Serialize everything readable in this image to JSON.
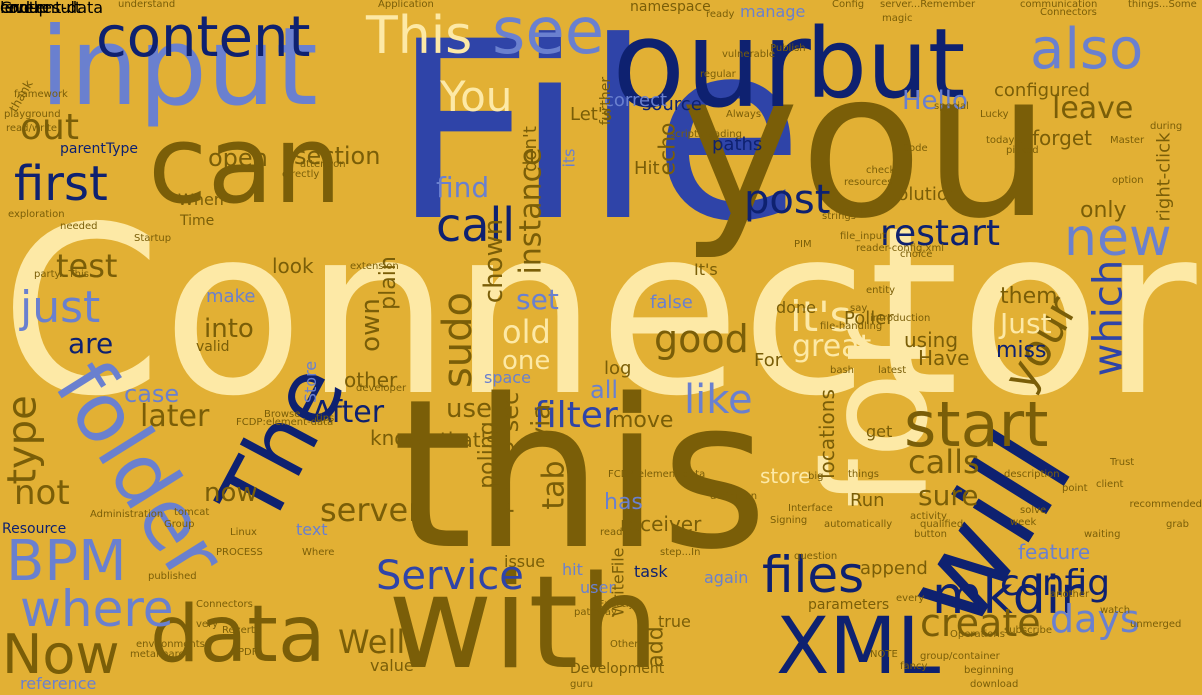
{
  "colors": {
    "background": "#e2b034",
    "cream": "#fde9a6",
    "navy": "#0e2170",
    "blue": "#2f44a8",
    "periwinkle": "#6a80cf",
    "olive": "#7a5e08",
    "brown": "#5c4304",
    "tan": "#c79a2a",
    "pale": "#d9b765"
  },
  "words": [
    {
      "text": "Connector",
      "color": "cream"
    },
    {
      "text": "File",
      "color": "blue"
    },
    {
      "text": "you",
      "color": "olive"
    },
    {
      "text": "this",
      "color": "olive"
    },
    {
      "text": "with",
      "color": "olive"
    },
    {
      "text": "our",
      "color": "navy"
    },
    {
      "text": "input",
      "color": "periwinkle"
    },
    {
      "text": "can",
      "color": "olive"
    },
    {
      "text": "but",
      "color": "navy"
    },
    {
      "text": "for",
      "color": "cream"
    },
    {
      "text": "will",
      "color": "navy"
    },
    {
      "text": "The",
      "color": "navy"
    },
    {
      "text": "folder",
      "color": "periwinkle"
    },
    {
      "text": "content",
      "color": "navy"
    },
    {
      "text": "see",
      "color": "periwinkle"
    },
    {
      "text": "also",
      "color": "periwinkle"
    },
    {
      "text": "This",
      "color": "cream"
    },
    {
      "text": "data",
      "color": "olive"
    },
    {
      "text": "XML",
      "color": "navy"
    },
    {
      "text": "start",
      "color": "olive"
    },
    {
      "text": "new",
      "color": "periwinkle"
    },
    {
      "text": "first",
      "color": "navy"
    },
    {
      "text": "BPM",
      "color": "periwinkle"
    },
    {
      "text": "where",
      "color": "periwinkle"
    },
    {
      "text": "Now",
      "color": "olive"
    },
    {
      "text": "mkdir",
      "color": "navy"
    },
    {
      "text": "files",
      "color": "navy"
    },
    {
      "text": "just",
      "color": "periwinkle"
    },
    {
      "text": "Service",
      "color": "blue"
    },
    {
      "text": "it's",
      "color": "cream"
    },
    {
      "text": "call",
      "color": "navy"
    },
    {
      "text": "You",
      "color": "cream"
    },
    {
      "text": "your",
      "color": "olive"
    },
    {
      "text": "which",
      "color": "blue"
    },
    {
      "text": "config",
      "color": "navy"
    },
    {
      "text": "create",
      "color": "olive"
    },
    {
      "text": "like",
      "color": "periwinkle"
    },
    {
      "text": "filter",
      "color": "blue"
    },
    {
      "text": "post",
      "color": "navy"
    },
    {
      "text": "good",
      "color": "olive"
    },
    {
      "text": "restart",
      "color": "navy"
    },
    {
      "text": "days",
      "color": "periwinkle"
    },
    {
      "text": "calls",
      "color": "olive"
    },
    {
      "text": "server",
      "color": "olive"
    },
    {
      "text": "After",
      "color": "navy"
    },
    {
      "text": "section",
      "color": "olive"
    },
    {
      "text": "find",
      "color": "periwinkle"
    },
    {
      "text": "out",
      "color": "olive"
    },
    {
      "text": "test",
      "color": "olive"
    },
    {
      "text": "are",
      "color": "navy"
    },
    {
      "text": "later",
      "color": "olive"
    },
    {
      "text": "type",
      "color": "olive"
    },
    {
      "text": "not",
      "color": "olive"
    },
    {
      "text": "Well",
      "color": "olive"
    },
    {
      "text": "old",
      "color": "cream"
    },
    {
      "text": "great",
      "color": "cream"
    },
    {
      "text": "sudo",
      "color": "olive"
    },
    {
      "text": "tab",
      "color": "olive"
    },
    {
      "text": "Hello",
      "color": "periwinkle"
    },
    {
      "text": "leave",
      "color": "olive"
    },
    {
      "text": "open",
      "color": "olive"
    },
    {
      "text": "set",
      "color": "periwinkle"
    },
    {
      "text": "Just",
      "color": "cream"
    },
    {
      "text": "own",
      "color": "olive"
    },
    {
      "text": "into",
      "color": "olive"
    },
    {
      "text": "all",
      "color": "periwinkle"
    },
    {
      "text": "use",
      "color": "olive"
    },
    {
      "text": "sure",
      "color": "olive"
    },
    {
      "text": "now",
      "color": "olive"
    },
    {
      "text": "instance",
      "color": "olive"
    },
    {
      "text": "one",
      "color": "cream"
    },
    {
      "text": "make",
      "color": "periwinkle"
    },
    {
      "text": "feature",
      "color": "periwinkle"
    },
    {
      "text": "reference",
      "color": "periwinkle"
    },
    {
      "text": "configured",
      "color": "olive"
    },
    {
      "text": "only",
      "color": "olive"
    },
    {
      "text": "case",
      "color": "periwinkle"
    },
    {
      "text": "them",
      "color": "olive"
    },
    {
      "text": "miss",
      "color": "navy"
    },
    {
      "text": "Have",
      "color": "olive"
    },
    {
      "text": "using",
      "color": "olive"
    },
    {
      "text": "forget",
      "color": "olive"
    },
    {
      "text": "chown",
      "color": "olive"
    },
    {
      "text": "plain",
      "color": "olive"
    },
    {
      "text": "look",
      "color": "olive"
    },
    {
      "text": "echo",
      "color": "olive"
    },
    {
      "text": "paths",
      "color": "navy"
    },
    {
      "text": "source",
      "color": "navy"
    },
    {
      "text": "solution",
      "color": "olive"
    },
    {
      "text": "Poller",
      "color": "olive"
    },
    {
      "text": "store",
      "color": "cream"
    },
    {
      "text": "Run",
      "color": "olive"
    },
    {
      "text": "append",
      "color": "olive"
    },
    {
      "text": "get",
      "color": "olive"
    },
    {
      "text": "has",
      "color": "periwinkle"
    },
    {
      "text": "receiver",
      "color": "olive"
    },
    {
      "text": "move",
      "color": "olive"
    },
    {
      "text": "that's",
      "color": "olive"
    },
    {
      "text": "know",
      "color": "olive"
    },
    {
      "text": "via",
      "color": "olive"
    },
    {
      "text": "sec",
      "color": "olive"
    },
    {
      "text": "poling",
      "color": "olive"
    },
    {
      "text": "polling",
      "color": "olive"
    },
    {
      "text": "other",
      "color": "olive"
    },
    {
      "text": "log",
      "color": "olive"
    },
    {
      "text": "false",
      "color": "periwinkle"
    },
    {
      "text": "done",
      "color": "olive"
    },
    {
      "text": "For",
      "color": "olive"
    },
    {
      "text": "locations",
      "color": "olive"
    },
    {
      "text": "right-click",
      "color": "olive"
    },
    {
      "text": "It's",
      "color": "olive"
    },
    {
      "text": "Hit",
      "color": "olive"
    },
    {
      "text": "Let's",
      "color": "olive"
    },
    {
      "text": "don't",
      "color": "olive"
    },
    {
      "text": "correct",
      "color": "periwinkle"
    },
    {
      "text": "further",
      "color": "olive"
    },
    {
      "text": "its",
      "color": "periwinkle"
    },
    {
      "text": "manage",
      "color": "periwinkle"
    },
    {
      "text": "namespace",
      "color": "olive"
    },
    {
      "text": "text",
      "color": "periwinkle"
    },
    {
      "text": "When",
      "color": "olive"
    },
    {
      "text": "Time",
      "color": "olive"
    },
    {
      "text": "parentType",
      "color": "navy"
    },
    {
      "text": "Resource",
      "color": "navy"
    },
    {
      "text": "valid",
      "color": "olive"
    },
    {
      "text": "space",
      "color": "periwinkle"
    },
    {
      "text": "Store",
      "color": "periwinkle"
    },
    {
      "text": "value",
      "color": "olive"
    },
    {
      "text": "Development",
      "color": "olive"
    },
    {
      "text": "true",
      "color": "olive"
    },
    {
      "text": "user",
      "color": "periwinkle"
    },
    {
      "text": "hit",
      "color": "periwinkle"
    },
    {
      "text": "issue",
      "color": "olive"
    },
    {
      "text": "again",
      "color": "periwinkle"
    },
    {
      "text": "task",
      "color": "navy"
    },
    {
      "text": "parameters",
      "color": "olive"
    },
    {
      "text": "add",
      "color": "olive"
    },
    {
      "text": "WriteFile",
      "color": "olive"
    },
    {
      "text": "thank",
      "color": "olive"
    },
    {
      "text": "guru",
      "color": "olive"
    },
    {
      "text": "download",
      "color": "olive"
    },
    {
      "text": "PDF",
      "color": "olive"
    },
    {
      "text": "published",
      "color": "olive"
    },
    {
      "text": "Revert",
      "color": "olive"
    },
    {
      "text": "very",
      "color": "olive"
    },
    {
      "text": "environments",
      "color": "olive"
    },
    {
      "text": "subscribe",
      "color": "olive"
    },
    {
      "text": "Browse",
      "color": "olive"
    },
    {
      "text": "tomcat",
      "color": "olive"
    },
    {
      "text": "Group",
      "color": "olive"
    },
    {
      "text": "exploration",
      "color": "olive"
    },
    {
      "text": "playground",
      "color": "olive"
    },
    {
      "text": "read/write",
      "color": "olive"
    },
    {
      "text": "understand",
      "color": "olive"
    },
    {
      "text": "communication",
      "color": "olive"
    },
    {
      "text": "Connectors",
      "color": "olive"
    },
    {
      "text": "Code",
      "color": "olive"
    },
    {
      "text": "resources",
      "color": "olive"
    },
    {
      "text": "today's",
      "color": "olive"
    },
    {
      "text": "magic",
      "color": "olive"
    },
    {
      "text": "Lucky",
      "color": "olive"
    },
    {
      "text": "Master",
      "color": "olive"
    },
    {
      "text": "picked",
      "color": "olive"
    },
    {
      "text": "option",
      "color": "olive"
    },
    {
      "text": "during",
      "color": "olive"
    },
    {
      "text": "file_input",
      "color": "olive"
    },
    {
      "text": "reader-config.xml",
      "color": "olive"
    },
    {
      "text": "Polling",
      "color": "olive"
    },
    {
      "text": "entity",
      "color": "olive"
    },
    {
      "text": "introduction",
      "color": "olive"
    },
    {
      "text": "file-handling",
      "color": "olive"
    },
    {
      "text": "developer",
      "color": "olive"
    },
    {
      "text": "Administration",
      "color": "olive"
    },
    {
      "text": "Signing",
      "color": "olive"
    },
    {
      "text": "qualified",
      "color": "olive"
    },
    {
      "text": "Application",
      "color": "olive"
    },
    {
      "text": "server...Remember",
      "color": "olive"
    },
    {
      "text": "Config",
      "color": "olive"
    },
    {
      "text": "things...Some",
      "color": "olive"
    },
    {
      "text": "recommended",
      "color": "olive"
    },
    {
      "text": "grab",
      "color": "olive"
    },
    {
      "text": "week",
      "color": "olive"
    },
    {
      "text": "solve",
      "color": "olive"
    },
    {
      "text": "waiting",
      "color": "olive"
    },
    {
      "text": "NOTE",
      "color": "olive"
    },
    {
      "text": "fancy",
      "color": "olive"
    },
    {
      "text": "group/container",
      "color": "olive"
    },
    {
      "text": "beginning",
      "color": "olive"
    },
    {
      "text": "metalmare",
      "color": "olive"
    },
    {
      "text": "party...This",
      "color": "olive"
    },
    {
      "text": "Startup",
      "color": "olive"
    },
    {
      "text": "directly",
      "color": "olive"
    },
    {
      "text": "attention",
      "color": "olive"
    },
    {
      "text": "needed",
      "color": "olive"
    },
    {
      "text": "framework",
      "color": "olive"
    },
    {
      "text": "Where",
      "color": "olive"
    },
    {
      "text": "FCDP:element-data",
      "color": "olive"
    },
    {
      "text": "PROCESS",
      "color": "olive"
    },
    {
      "text": "pathway",
      "color": "olive"
    },
    {
      "text": "activity",
      "color": "olive"
    },
    {
      "text": "button",
      "color": "olive"
    },
    {
      "text": "step...In",
      "color": "olive"
    },
    {
      "text": "definition",
      "color": "olive"
    },
    {
      "text": "Interface",
      "color": "olive"
    },
    {
      "text": "automatically",
      "color": "olive"
    },
    {
      "text": "description",
      "color": "olive"
    },
    {
      "text": "point",
      "color": "olive"
    },
    {
      "text": "Trust",
      "color": "olive"
    },
    {
      "text": "client",
      "color": "olive"
    },
    {
      "text": "things",
      "color": "olive"
    },
    {
      "text": "big",
      "color": "olive"
    },
    {
      "text": "Exactly",
      "color": "olive"
    },
    {
      "text": "question",
      "color": "olive"
    },
    {
      "text": "every",
      "color": "olive"
    },
    {
      "text": "another",
      "color": "olive"
    },
    {
      "text": "watch",
      "color": "olive"
    },
    {
      "text": "strings",
      "color": "olive"
    },
    {
      "text": "check",
      "color": "olive"
    },
    {
      "text": "choice",
      "color": "olive"
    },
    {
      "text": "special",
      "color": "olive"
    },
    {
      "text": "reading",
      "color": "olive"
    },
    {
      "text": "vulnerable",
      "color": "olive"
    },
    {
      "text": "regular",
      "color": "olive"
    },
    {
      "text": "scripts",
      "color": "olive"
    },
    {
      "text": "Always",
      "color": "olive"
    },
    {
      "text": "Publish",
      "color": "olive"
    },
    {
      "text": "ready",
      "color": "olive"
    },
    {
      "text": "Other",
      "color": "olive"
    },
    {
      "text": "PIM",
      "color": "olive"
    },
    {
      "text": "say",
      "color": "olive"
    },
    {
      "text": "latest",
      "color": "olive"
    },
    {
      "text": "bash",
      "color": "olive"
    },
    {
      "text": "tips",
      "color": "olive"
    },
    {
      "text": "extension",
      "color": "olive"
    },
    {
      "text": "Operations",
      "color": "olive"
    },
    {
      "text": "Connectors",
      "color": "olive"
    },
    {
      "text": "Linux",
      "color": "olive"
    },
    {
      "text": "unmerged",
      "color": "olive"
    },
    {
      "text": "ready",
      "color": "olive"
    },
    {
      "text": "FCDP:element-data",
      "color": "olive"
    },
    {
      "text": "content-data",
      "color": "olive"
    },
    {
      "text": "Group",
      "color": "olive"
    },
    {
      "text": "level",
      "color": "olive"
    },
    {
      "text": "end-result",
      "color": "olive"
    }
  ]
}
